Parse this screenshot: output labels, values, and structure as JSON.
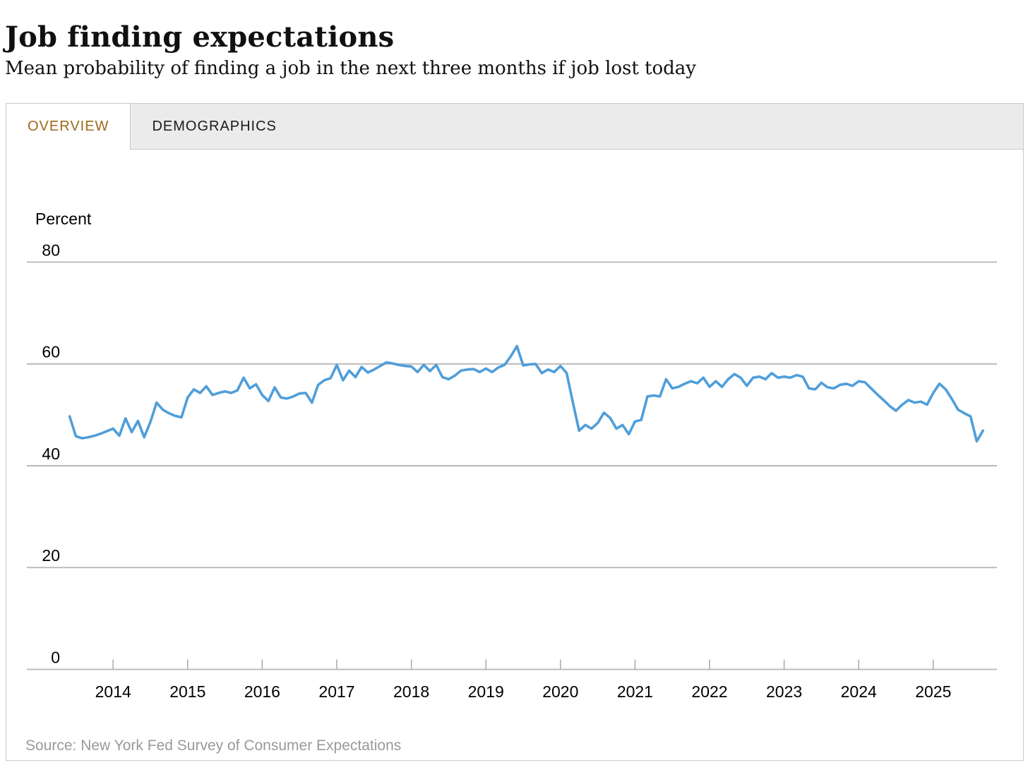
{
  "header": {
    "title": "Job finding expectations",
    "subtitle": "Mean probability of finding a job in the next three months if job lost today"
  },
  "tabs": [
    {
      "label": "OVERVIEW",
      "active": true
    },
    {
      "label": "DEMOGRAPHICS",
      "active": false
    }
  ],
  "source": "Source: New York Fed Survey of Consumer Expectations",
  "colors": {
    "line": "#4f9eda",
    "grid": "#b5b5b5",
    "tick": "#a9a9a9",
    "active_tab_text": "#9e681b",
    "source_text": "#999999"
  },
  "chart_data": {
    "type": "line",
    "title": "Job finding expectations",
    "ylabel": "Percent",
    "xlabel": "",
    "ylim": [
      0,
      80
    ],
    "y_ticks": [
      0,
      20,
      40,
      60,
      80
    ],
    "x_tick_labels": [
      "2014",
      "2015",
      "2016",
      "2017",
      "2018",
      "2019",
      "2020",
      "2021",
      "2022",
      "2023",
      "2024",
      "2025"
    ],
    "x_start": "2013-06",
    "x_end": "2025-09",
    "frequency": "monthly",
    "grid": true,
    "legend": "none",
    "series": [
      {
        "name": "Mean probability of finding a job in the next three months if job lost today (percent)",
        "values": [
          49.7,
          45.8,
          45.4,
          45.6,
          45.9,
          46.3,
          46.8,
          47.3,
          45.9,
          49.3,
          46.6,
          48.8,
          45.6,
          48.6,
          52.4,
          51.0,
          50.3,
          49.8,
          49.5,
          53.4,
          55.0,
          54.3,
          55.6,
          53.9,
          54.3,
          54.6,
          54.3,
          54.8,
          57.3,
          55.2,
          56.0,
          53.9,
          52.7,
          55.4,
          53.4,
          53.2,
          53.6,
          54.2,
          54.3,
          52.4,
          55.9,
          56.8,
          57.2,
          59.8,
          56.8,
          58.7,
          57.4,
          59.4,
          58.3,
          58.9,
          59.6,
          60.3,
          60.1,
          59.8,
          59.6,
          59.5,
          58.4,
          59.8,
          58.6,
          59.8,
          57.4,
          57.0,
          57.7,
          58.7,
          58.9,
          59.0,
          58.4,
          59.1,
          58.4,
          59.3,
          59.8,
          61.5,
          63.5,
          59.7,
          59.9,
          60.0,
          58.2,
          58.9,
          58.4,
          59.6,
          58.2,
          52.4,
          46.9,
          48.0,
          47.3,
          48.4,
          50.4,
          49.4,
          47.3,
          48.0,
          46.2,
          48.7,
          49.0,
          53.6,
          53.8,
          53.6,
          57.0,
          55.2,
          55.5,
          56.1,
          56.6,
          56.2,
          57.3,
          55.5,
          56.6,
          55.5,
          57.0,
          58.0,
          57.3,
          55.7,
          57.3,
          57.5,
          57.0,
          58.2,
          57.3,
          57.5,
          57.3,
          57.8,
          57.5,
          55.2,
          55.0,
          56.3,
          55.4,
          55.2,
          55.9,
          56.1,
          55.7,
          56.6,
          56.4,
          55.2,
          54.0,
          52.9,
          51.7,
          50.8,
          52.0,
          52.9,
          52.4,
          52.6,
          52.0,
          54.3,
          56.1,
          55.0,
          53.1,
          51.0,
          50.3,
          49.7,
          44.8,
          46.9
        ]
      }
    ]
  }
}
